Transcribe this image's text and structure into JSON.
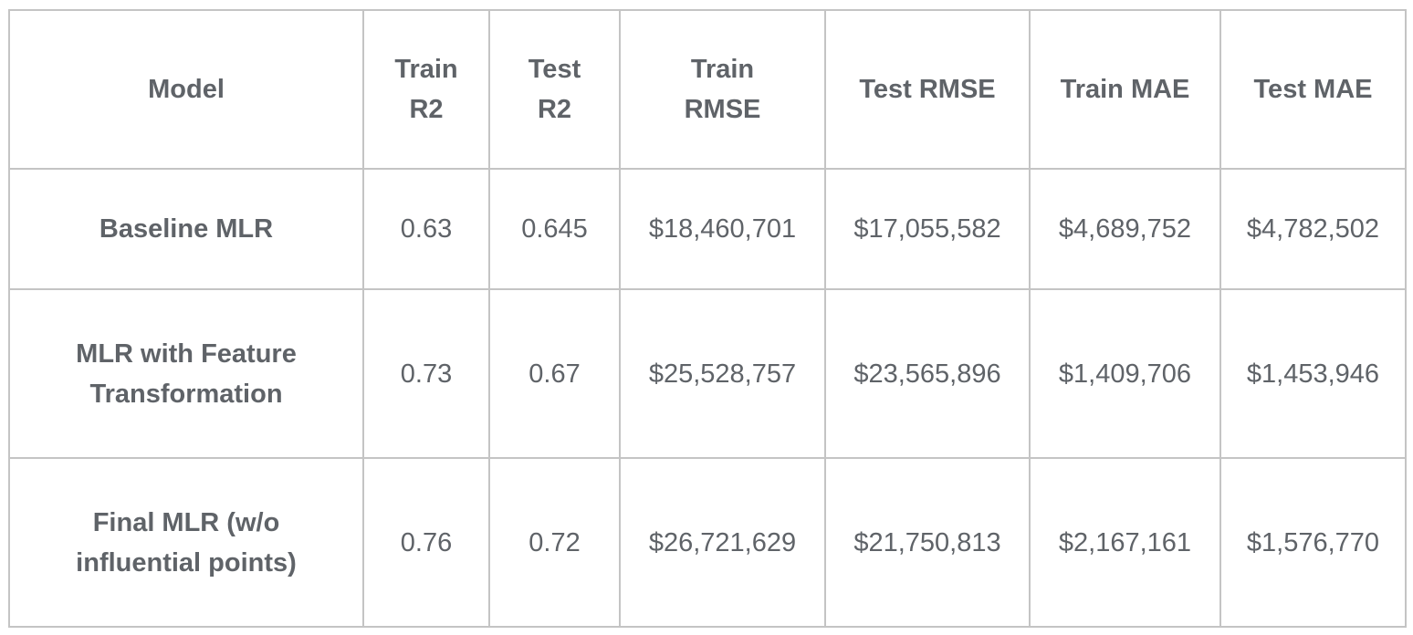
{
  "table": {
    "headers": [
      [
        "Model"
      ],
      [
        "Train",
        "R2"
      ],
      [
        "Test",
        "R2"
      ],
      [
        "Train",
        "RMSE"
      ],
      [
        "Test RMSE"
      ],
      [
        "Train MAE"
      ],
      [
        "Test MAE"
      ]
    ],
    "rows": [
      {
        "model": [
          "Baseline MLR"
        ],
        "train_r2": "0.63",
        "test_r2": "0.645",
        "train_rmse": "$18,460,701",
        "test_rmse": "$17,055,582",
        "train_mae": "$4,689,752",
        "test_mae": "$4,782,502"
      },
      {
        "model": [
          "MLR with Feature",
          "Transformation"
        ],
        "train_r2": "0.73",
        "test_r2": "0.67",
        "train_rmse": "$25,528,757",
        "test_rmse": "$23,565,896",
        "train_mae": "$1,409,706",
        "test_mae": "$1,453,946"
      },
      {
        "model": [
          "Final MLR (w/o",
          "influential points)"
        ],
        "train_r2": "0.76",
        "test_r2": "0.72",
        "train_rmse": "$26,721,629",
        "test_rmse": "$21,750,813",
        "train_mae": "$2,167,161",
        "test_mae": "$1,576,770"
      }
    ]
  },
  "colors": {
    "text": "#5f6368",
    "border": "#c4c4c4",
    "background": "#ffffff"
  }
}
